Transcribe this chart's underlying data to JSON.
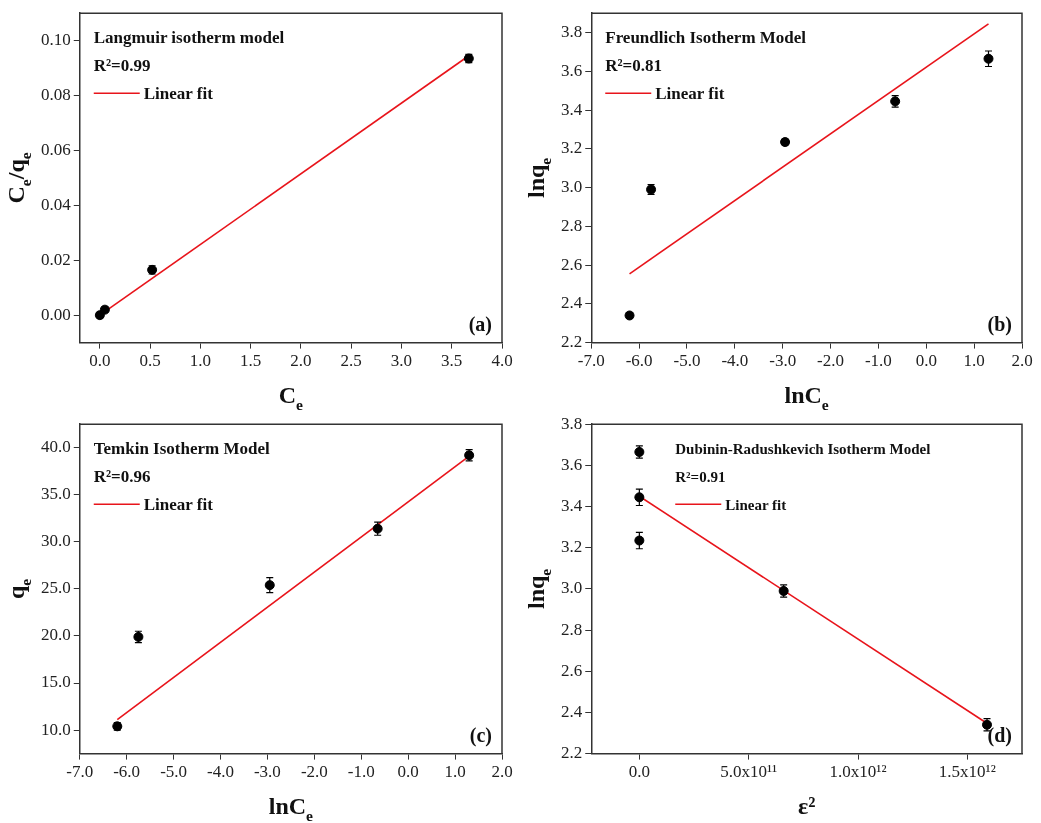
{
  "chart_data": [
    {
      "type": "scatter",
      "xlabel": "C$_{e}$",
      "ylabel": "C$_{e}$/q$_{e}$",
      "annotations": [
        "Langmuir isotherm model",
        "R²=0.99",
        "(a)"
      ],
      "legend": "top left",
      "grid": false,
      "xlim": [
        -0.2,
        4.0
      ],
      "xticks": [
        {
          "value": 0,
          "label": "0.0"
        },
        0.5,
        {
          "value": 1,
          "label": "1.0"
        },
        1.5,
        {
          "value": 2,
          "label": "2.0"
        },
        2.5,
        {
          "value": 3,
          "label": "3.0"
        },
        3.5,
        {
          "value": 4,
          "label": "4.0"
        }
      ],
      "ylim": [
        -0.01,
        0.11
      ],
      "yticks": [
        {
          "value": 0,
          "label": "0.00"
        },
        {
          "value": 0.02,
          "label": "0.02"
        },
        {
          "value": 0.04,
          "label": "0.04"
        },
        {
          "value": 0.06,
          "label": "0.06"
        },
        {
          "value": 0.08,
          "label": "0.08"
        },
        {
          "value": 0.1,
          "label": "0.10"
        }
      ],
      "series": [
        {
          "type": "scatter",
          "color": "#000000",
          "marker": "circle",
          "x": [
            0.0,
            0.05,
            0.52,
            3.67
          ],
          "values": [
            0.0,
            0.002,
            0.0165,
            0.0935
          ],
          "errors": [
            0.001,
            0.001,
            0.0015,
            0.0015
          ]
        },
        {
          "type": "line",
          "name": "Linear fit",
          "color": "#e8141b",
          "line_style": "solid",
          "x": [
            0.0,
            3.67
          ],
          "values": [
            0.0,
            0.0945
          ]
        }
      ]
    },
    {
      "type": "scatter",
      "xlabel": "lnC$_{e}$",
      "ylabel": "lnq$_{e}$",
      "annotations": [
        "Freundlich Isotherm Model",
        "R²=0.81",
        "(b)"
      ],
      "legend": "top left",
      "grid": false,
      "xlim": [
        -7,
        2
      ],
      "xticks": [
        {
          "value": -7,
          "label": "-7.0"
        },
        {
          "value": -6,
          "label": "-6.0"
        },
        {
          "value": -5,
          "label": "-5.0"
        },
        {
          "value": -4,
          "label": "-4.0"
        },
        {
          "value": -3,
          "label": "-3.0"
        },
        {
          "value": -2,
          "label": "-2.0"
        },
        {
          "value": -1,
          "label": "-1.0"
        },
        {
          "value": 0,
          "label": "0.0"
        },
        {
          "value": 1,
          "label": "1.0"
        },
        {
          "value": 2,
          "label": "2.0"
        }
      ],
      "ylim": [
        2.2,
        3.9
      ],
      "yticks": [
        2.2,
        2.4,
        2.6,
        2.8,
        {
          "value": 3,
          "label": "3.0"
        },
        3.2,
        3.4,
        3.6,
        3.8
      ],
      "series": [
        {
          "type": "scatter",
          "color": "#000000",
          "marker": "circle",
          "x": [
            -6.2,
            -5.75,
            -2.95,
            -0.65,
            1.3
          ],
          "values": [
            2.34,
            2.99,
            3.235,
            3.445,
            3.665
          ],
          "errors": [
            0.015,
            0.025,
            0.015,
            0.03,
            0.04
          ]
        },
        {
          "type": "line",
          "name": "Linear fit",
          "color": "#e8141b",
          "line_style": "solid",
          "x": [
            -6.2,
            1.3
          ],
          "values": [
            2.555,
            3.845
          ]
        }
      ]
    },
    {
      "type": "scatter",
      "xlabel": "lnC$_{e}$",
      "ylabel": "q$_{e}$",
      "annotations": [
        "Temkin Isotherm Model",
        "R²=0.96",
        "(c)"
      ],
      "legend": "top left",
      "grid": false,
      "xlim": [
        -7,
        2
      ],
      "xticks": [
        {
          "value": -7,
          "label": "-7.0"
        },
        {
          "value": -6,
          "label": "-6.0"
        },
        {
          "value": -5,
          "label": "-5.0"
        },
        {
          "value": -4,
          "label": "-4.0"
        },
        {
          "value": -3,
          "label": "-3.0"
        },
        {
          "value": -2,
          "label": "-2.0"
        },
        {
          "value": -1,
          "label": "-1.0"
        },
        {
          "value": 0,
          "label": "0.0"
        },
        {
          "value": 1,
          "label": "1.0"
        },
        {
          "value": 2,
          "label": "2.0"
        }
      ],
      "ylim": [
        7.5,
        42.5
      ],
      "yticks": [
        {
          "value": 10,
          "label": "10.0"
        },
        {
          "value": 15,
          "label": "15.0"
        },
        {
          "value": 20,
          "label": "20.0"
        },
        {
          "value": 25,
          "label": "25.0"
        },
        {
          "value": 30,
          "label": "30.0"
        },
        {
          "value": 35,
          "label": "35.0"
        },
        {
          "value": 40,
          "label": "40.0"
        }
      ],
      "series": [
        {
          "type": "scatter",
          "color": "#000000",
          "marker": "circle",
          "x": [
            -6.2,
            -5.75,
            -2.95,
            -0.65,
            1.3
          ],
          "values": [
            10.4,
            19.9,
            25.4,
            31.4,
            39.2
          ],
          "errors": [
            0.4,
            0.6,
            0.8,
            0.7,
            0.6
          ]
        },
        {
          "type": "line",
          "name": "Linear fit",
          "color": "#e8141b",
          "line_style": "solid",
          "x": [
            -6.2,
            1.3
          ],
          "values": [
            11.1,
            39.1
          ]
        }
      ]
    },
    {
      "type": "scatter",
      "xlabel": "ε²",
      "ylabel": "lnq$_{e}$",
      "annotations": [
        "Dubinin-Radushkevich Isotherm Model",
        "R²=0.91",
        "(d)"
      ],
      "legend": "top left",
      "grid": false,
      "xlim": [
        -220000000000,
        1750000000000
      ],
      "xticks": [
        {
          "value": 0,
          "label": "0.0"
        },
        {
          "value": 500000000000,
          "label": "5.0x10¹¹"
        },
        {
          "value": 1000000000000,
          "label": "1.0x10¹²"
        },
        {
          "value": 1500000000000,
          "label": "1.5x10¹²"
        }
      ],
      "ylim": [
        2.2,
        3.8
      ],
      "yticks": [
        2.2,
        2.4,
        2.6,
        2.8,
        {
          "value": 3,
          "label": "3.0"
        },
        3.2,
        3.4,
        3.6,
        3.8
      ],
      "series": [
        {
          "type": "scatter",
          "color": "#000000",
          "marker": "circle",
          "x": [
            0,
            0,
            0,
            660000000000,
            1590000000000
          ],
          "values": [
            3.665,
            3.445,
            3.235,
            2.99,
            2.34
          ],
          "errors": [
            0.03,
            0.04,
            0.04,
            0.03,
            0.03
          ]
        },
        {
          "type": "line",
          "name": "Linear fit",
          "color": "#e8141b",
          "line_style": "solid",
          "x": [
            0,
            1600000000000
          ],
          "values": [
            3.45,
            2.34
          ]
        }
      ]
    }
  ]
}
